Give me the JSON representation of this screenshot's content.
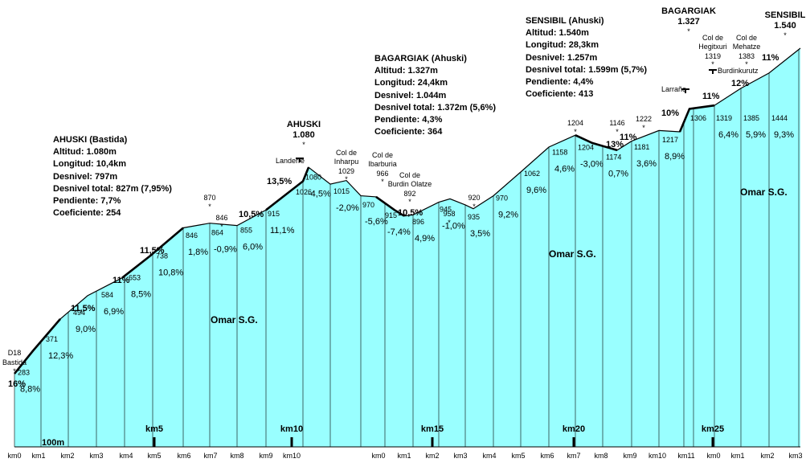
{
  "chart_data": {
    "type": "area",
    "title": "",
    "xlabel": "",
    "ylabel": "",
    "ylim": [
      0,
      1540
    ],
    "colors": {
      "fill": "#99FFFF",
      "line": "#000000",
      "background": "#FFFFFF"
    },
    "scale_label": "100m",
    "profile_points": [
      {
        "label": "D18 Bastida",
        "elevation": 283
      },
      {
        "label": "",
        "elevation": 371
      },
      {
        "label": "",
        "elevation": 494
      },
      {
        "label": "",
        "elevation": 584
      },
      {
        "label": "",
        "elevation": 653
      },
      {
        "label": "",
        "elevation": 738
      },
      {
        "label": "",
        "elevation": 846
      },
      {
        "label": "",
        "elevation": 864
      },
      {
        "label": "",
        "elevation": 855
      },
      {
        "label": "",
        "elevation": 915
      },
      {
        "label": "",
        "elevation": 1026
      },
      {
        "label": "",
        "elevation": 1080
      },
      {
        "label": "",
        "elevation": 1015
      },
      {
        "label": "Col de Inharpu",
        "elevation": 1029
      },
      {
        "label": "",
        "elevation": 970
      },
      {
        "label": "Col de Ibarburia",
        "elevation": 966
      },
      {
        "label": "",
        "elevation": 915
      },
      {
        "label": "Col de Burdin Olatze",
        "elevation": 892
      },
      {
        "label": "",
        "elevation": 896
      },
      {
        "label": "",
        "elevation": 945
      },
      {
        "label": "",
        "elevation": 958
      },
      {
        "label": "",
        "elevation": 935
      },
      {
        "label": "",
        "elevation": 920
      },
      {
        "label": "",
        "elevation": 970
      },
      {
        "label": "",
        "elevation": 1062
      },
      {
        "label": "",
        "elevation": 1158
      },
      {
        "label": "",
        "elevation": 1204
      },
      {
        "label": "",
        "elevation": 1174
      },
      {
        "label": "",
        "elevation": 1146
      },
      {
        "label": "",
        "elevation": 1181
      },
      {
        "label": "",
        "elevation": 1222
      },
      {
        "label": "",
        "elevation": 1217
      },
      {
        "label": "",
        "elevation": 1306
      },
      {
        "label": "",
        "elevation": 1319
      },
      {
        "label": "",
        "elevation": 1385
      },
      {
        "label": "",
        "elevation": 1444
      },
      {
        "label": "",
        "elevation": 1540
      }
    ],
    "segments": [
      {
        "elevation": "283",
        "gradient": "8,8%"
      },
      {
        "elevation": "371",
        "gradient": "12,3%"
      },
      {
        "elevation": "494",
        "gradient": "9,0%"
      },
      {
        "elevation": "584",
        "gradient": "6,9%"
      },
      {
        "elevation": "653",
        "gradient": "8,5%"
      },
      {
        "elevation": "738",
        "gradient": "10,8%"
      },
      {
        "elevation": "846",
        "gradient": "1,8%"
      },
      {
        "elevation": "864",
        "gradient": "-0,9%"
      },
      {
        "elevation": "855",
        "gradient": "6,0%"
      },
      {
        "elevation": "915",
        "gradient": "11,1%"
      },
      {
        "elevation": "1026",
        "gradient": ""
      },
      {
        "elevation": "1080",
        "gradient": "-4,5%"
      },
      {
        "elevation": "1015",
        "gradient": "-2,0%"
      },
      {
        "elevation": "970",
        "gradient": "-5,6%"
      },
      {
        "elevation": "915",
        "gradient": "-7,4%"
      },
      {
        "elevation": "896",
        "gradient": "4,9%"
      },
      {
        "elevation": "945",
        "gradient": "-1,0%"
      },
      {
        "elevation": "935",
        "gradient": "3,5%"
      },
      {
        "elevation": "970",
        "gradient": "9,2%"
      },
      {
        "elevation": "1062",
        "gradient": "9,6%"
      },
      {
        "elevation": "1158",
        "gradient": "4,6%"
      },
      {
        "elevation": "1204",
        "gradient": "-3,0%"
      },
      {
        "elevation": "1174",
        "gradient": "0,7%"
      },
      {
        "elevation": "1181",
        "gradient": "3,6%"
      },
      {
        "elevation": "1217",
        "gradient": "8,9%"
      },
      {
        "elevation": "1306",
        "gradient": ""
      },
      {
        "elevation": "1319",
        "gradient": "6,4%"
      },
      {
        "elevation": "1385",
        "gradient": "5,9%"
      },
      {
        "elevation": "1444",
        "gradient": "9,3%"
      }
    ],
    "max_gradients": [
      "16%",
      "11,5%",
      "11%",
      "11,5%",
      "13,5%",
      "10,5%",
      "10,5%",
      "13%",
      "11%",
      "10%",
      "11%",
      "12%",
      "11%"
    ],
    "summits": [
      {
        "name": "AHUSKI",
        "elevation": "1.080"
      },
      {
        "name": "BAGARGIAK",
        "elevation": "1.327"
      },
      {
        "name": "SENSIBIL",
        "elevation": "1.540"
      }
    ],
    "places": [
      "Landerre",
      "Larrañe",
      "Burdinkurutz"
    ],
    "cols": [
      {
        "name": "Col de Hegitxuri",
        "elevation": "1319"
      },
      {
        "name": "Col de Mehatze",
        "elevation": "1383"
      }
    ],
    "spot_heights": [
      "870",
      "846",
      "1204",
      "1146",
      "1222",
      "958",
      "920"
    ],
    "km_ticks_axis": [
      "km0",
      "km1",
      "km2",
      "km3",
      "km4",
      "km5",
      "km6",
      "km7",
      "km8",
      "km9",
      "km10",
      "km0",
      "km1",
      "km2",
      "km3",
      "km4",
      "km5",
      "km6",
      "km7",
      "km8",
      "km9",
      "km10",
      "km11",
      "km0",
      "km1",
      "km2",
      "km3"
    ],
    "km_markers": [
      "km5",
      "km10",
      "km15",
      "km20",
      "km25"
    ],
    "watermarks": [
      "Omar S.G.",
      "Omar S.G.",
      "Omar S.G."
    ]
  },
  "info_boxes": [
    {
      "title": "AHUSKI (Bastida)",
      "lines": [
        "Altitud: 1.080m",
        "Longitud: 10,4km",
        "Desnivel: 797m",
        "Desnivel total: 827m (7,95%)",
        "Pendiente: 7,7%",
        "Coeficiente: 254"
      ]
    },
    {
      "title": "BAGARGIAK (Ahuski)",
      "lines": [
        "Altitud: 1.327m",
        "Longitud: 24,4km",
        "Desnivel: 1.044m",
        "Desnivel total: 1.372m (5,6%)",
        "Pendiente: 4,3%",
        "Coeficiente: 364"
      ]
    },
    {
      "title": "SENSIBIL (Ahuski)",
      "lines": [
        "Altitud: 1.540m",
        "Longitud: 28,3km",
        "Desnivel: 1.257m",
        "Desnivel total: 1.599m (5,7%)",
        "Pendiente: 4,4%",
        "Coeficiente: 413"
      ]
    }
  ]
}
